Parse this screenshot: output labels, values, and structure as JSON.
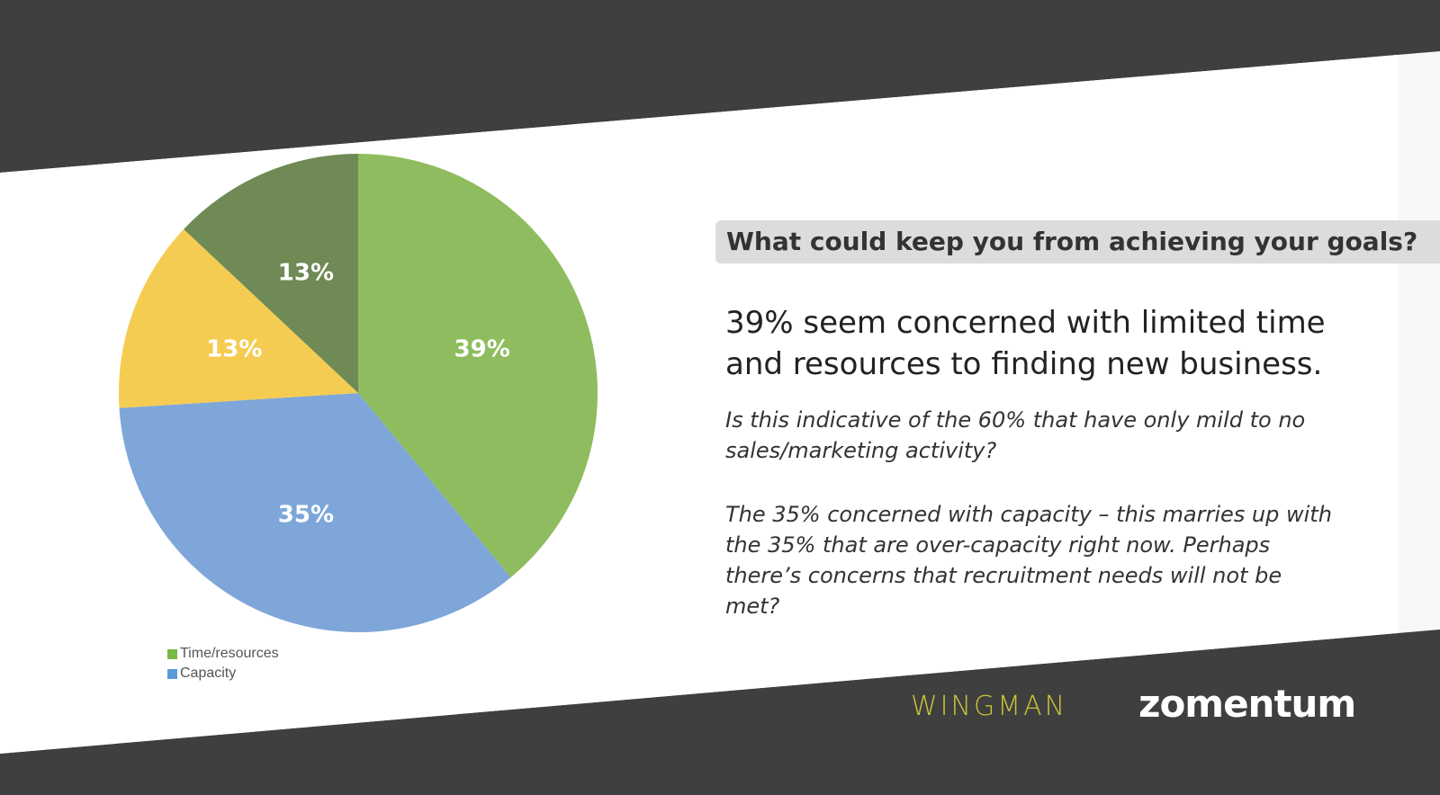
{
  "chart_data": {
    "type": "pie",
    "slices": [
      {
        "label": "Time/resources",
        "value": 39,
        "color": "#8fbc5e",
        "text": "39%"
      },
      {
        "label": "Capacity",
        "value": 35,
        "color": "#7ea6d9",
        "text": "35%"
      },
      {
        "label": "",
        "value": 13,
        "color": "#f5cc52",
        "text": "13%"
      },
      {
        "label": "",
        "value": 13,
        "color": "#6f8a55",
        "text": "13%"
      }
    ],
    "legend": [
      "Time/resources",
      "Capacity"
    ],
    "legend_position": "bottom-left"
  },
  "question": "What could keep you from achieving your goals?",
  "lead": "39% seem concerned with limited time and resources to finding new business.",
  "para1": "Is this indicative of the 60% that have only mild to no sales/marketing activity?",
  "para2": "The 35% concerned with capacity – this marries up with the 35% that are over-capacity right now. Perhaps there’s concerns that recruitment needs will not be met?",
  "logos": {
    "wingman": "WINGMAN",
    "zomentum": "zomentum"
  }
}
